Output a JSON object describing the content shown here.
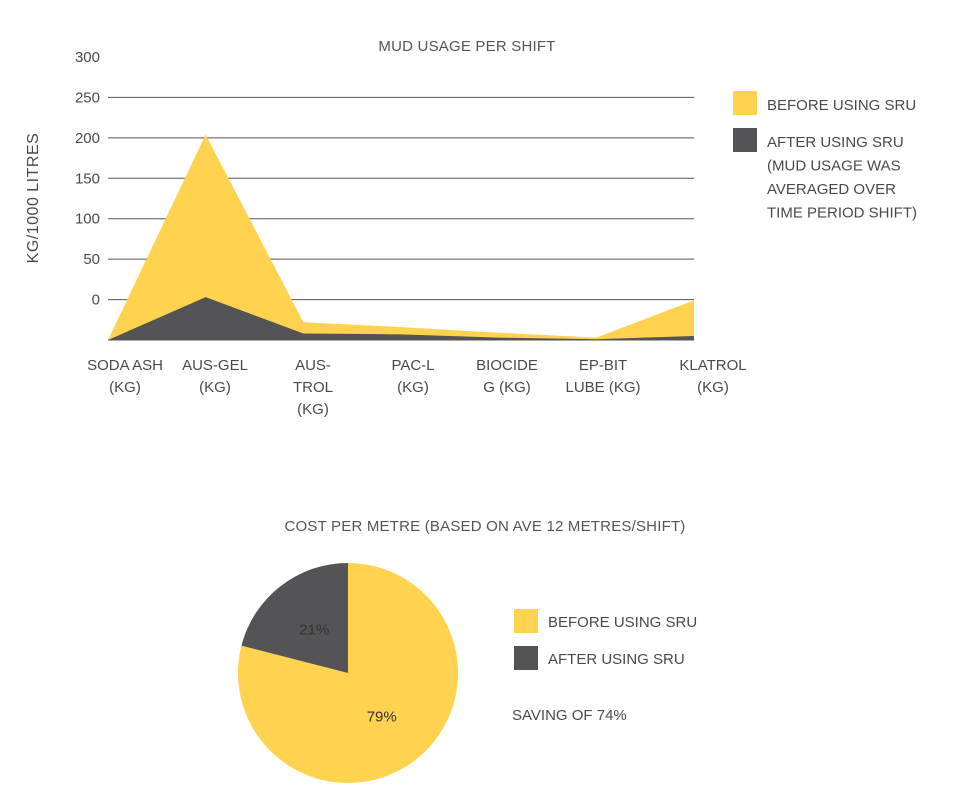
{
  "chart_data": [
    {
      "type": "area",
      "title": "MUD USAGE PER SHIFT",
      "ylabel": "KG/1000 LITRES",
      "xlabel": "",
      "yticks": [
        "300",
        "250",
        "200",
        "150",
        "100",
        "50",
        "0"
      ],
      "ylim": [
        -50,
        300
      ],
      "grid": true,
      "legend_position": "right",
      "categories": [
        [
          "SODA ASH",
          "(KG)"
        ],
        [
          "AUS-GEL",
          "(KG)"
        ],
        [
          "AUS-",
          "TROL",
          "(KG)"
        ],
        [
          "PAC-L",
          "(KG)"
        ],
        [
          "BIOCIDE",
          "G (KG)"
        ],
        [
          "EP-BIT",
          "LUBE (KG)"
        ],
        [
          "KLATROL",
          "(KG)"
        ]
      ],
      "series": [
        {
          "name": "BEFORE USING SRU",
          "color": "#FFD24F",
          "values": [
            -50,
            204,
            -28,
            -34,
            -41,
            -47,
            -1
          ]
        },
        {
          "name": "AFTER USING SRU (MUD USAGE WAS AVERAGED OVER TIME PERIOD SHIFT)",
          "color": "#545456",
          "values": [
            -50,
            3,
            -42,
            -43,
            -47,
            -49,
            -45
          ]
        }
      ],
      "legend": [
        {
          "lines": [
            "BEFORE USING SRU"
          ],
          "color": "#FFD24F"
        },
        {
          "lines": [
            "AFTER USING SRU",
            "(MUD USAGE WAS",
            "AVERAGED OVER",
            "TIME PERIOD SHIFT)"
          ],
          "color": "#545456"
        }
      ]
    },
    {
      "type": "pie",
      "title": "COST PER METRE (BASED ON AVE 12 METRES/SHIFT)",
      "slices": [
        {
          "label": "BEFORE USING SRU",
          "value": 79,
          "text": "79%",
          "color": "#FFD24F"
        },
        {
          "label": "AFTER USING SRU",
          "value": 21,
          "text": "21%",
          "color": "#545456"
        }
      ],
      "annotation": "SAVING OF 74%"
    }
  ]
}
